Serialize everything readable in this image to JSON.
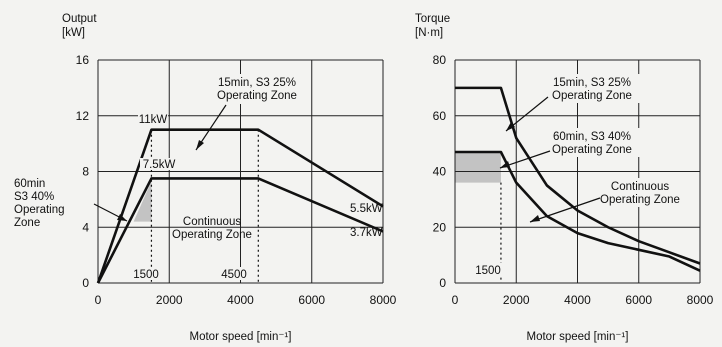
{
  "chart_data": [
    {
      "type": "line",
      "ylabel_lines": [
        "Output",
        "[kW]"
      ],
      "xlabel": "Motor speed [min⁻¹]",
      "xlim": [
        0,
        8000
      ],
      "ylim": [
        0,
        16
      ],
      "xticks": [
        0,
        2000,
        4000,
        6000,
        8000
      ],
      "yticks": [
        0,
        4,
        8,
        12,
        16
      ],
      "grid": true,
      "series": [
        {
          "key": "s3_25",
          "x": [
            0,
            1500,
            4500,
            8000
          ],
          "y": [
            0,
            11,
            11,
            5.5
          ]
        },
        {
          "key": "continuous",
          "x": [
            0,
            1500,
            4500,
            8000
          ],
          "y": [
            0,
            7.5,
            7.5,
            3.7
          ]
        },
        {
          "key": "s3_40_zone",
          "x": [
            1000,
            1500,
            1500
          ],
          "y": [
            4.4,
            7.3,
            4.4
          ]
        }
      ],
      "annotations": [
        {
          "key": "a1",
          "lines": [
            "15min, S3 25%",
            "Operating Zone"
          ]
        },
        {
          "key": "a2",
          "lines": [
            "11kW"
          ]
        },
        {
          "key": "a3",
          "lines": [
            "7.5kW"
          ]
        },
        {
          "key": "a4",
          "lines": [
            "60min",
            "S3 40%",
            "Operating",
            "Zone"
          ]
        },
        {
          "key": "a5",
          "lines": [
            "Continuous",
            "Operating Zone"
          ]
        },
        {
          "key": "a6",
          "lines": [
            "5.5kW"
          ]
        },
        {
          "key": "a7",
          "lines": [
            "3.7kW"
          ]
        },
        {
          "key": "a8",
          "lines": [
            "1500"
          ]
        },
        {
          "key": "a9",
          "lines": [
            "4500"
          ]
        }
      ]
    },
    {
      "type": "line",
      "ylabel_lines": [
        "Torque",
        "[N·m]"
      ],
      "xlabel": "Motor speed [min⁻¹]",
      "xlim": [
        0,
        8000
      ],
      "ylim": [
        0,
        80
      ],
      "xticks": [
        0,
        2000,
        4000,
        6000,
        8000
      ],
      "yticks": [
        0,
        20,
        40,
        60,
        80
      ],
      "grid": true,
      "series": [
        {
          "key": "s3_25",
          "x": [
            0,
            1500,
            2000,
            3000,
            4000,
            5000,
            6000,
            7000,
            8000
          ],
          "y": [
            70,
            70,
            52,
            35,
            26,
            20,
            15,
            11,
            7
          ]
        },
        {
          "key": "continuous",
          "x": [
            0,
            1500,
            2000,
            3000,
            4000,
            5000,
            6000,
            7000,
            8000
          ],
          "y": [
            47,
            47,
            36,
            24,
            17.9,
            14.3,
            11.9,
            9.5,
            4.4
          ]
        },
        {
          "key": "s3_40_zone",
          "x": [
            0,
            1500,
            1500,
            0
          ],
          "y": [
            47,
            47,
            36,
            36
          ]
        }
      ],
      "annotations": [
        {
          "key": "b1",
          "lines": [
            "15min, S3 25%",
            "Operating Zone"
          ]
        },
        {
          "key": "b2",
          "lines": [
            "60min, S3 40%",
            "Operating Zone"
          ]
        },
        {
          "key": "b3",
          "lines": [
            "Continuous",
            "Operating Zone"
          ]
        },
        {
          "key": "b4",
          "lines": [
            "1500"
          ]
        }
      ]
    }
  ]
}
